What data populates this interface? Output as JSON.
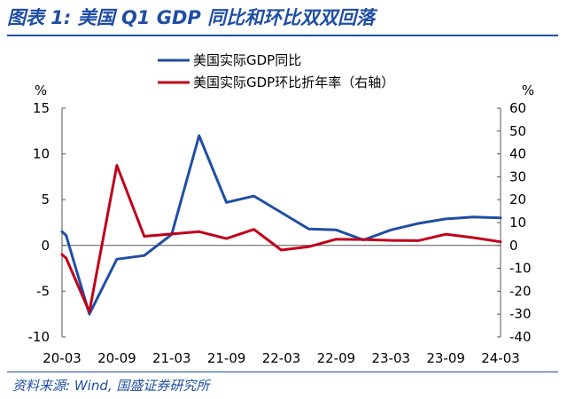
{
  "header": {
    "title": "图表 1:  美国 Q1 GDP 同比和环比双双回落"
  },
  "footer": {
    "source": "资料来源:  Wind,  国盛证券研究所"
  },
  "chart_data": {
    "type": "line",
    "title": "图表 1:  美国 Q1 GDP 同比和环比双双回落",
    "ylabel_left": "%",
    "ylabel_right": "%",
    "ylim_left": [
      -10,
      15
    ],
    "ylim_right": [
      -40,
      60
    ],
    "yticks_left": [
      "15",
      "10",
      "5",
      "0",
      "-5",
      "-10"
    ],
    "yticks_right": [
      "60",
      "50",
      "40",
      "30",
      "20",
      "10",
      "0",
      "-10",
      "-20",
      "-30",
      "-40"
    ],
    "x_tick_labels": [
      "20-03",
      "20-09",
      "21-03",
      "21-09",
      "22-03",
      "22-09",
      "23-03",
      "23-09",
      "24-03"
    ],
    "x_range": [
      0,
      16
    ],
    "series": [
      {
        "name": "美国实际GDP同比",
        "axis": "left",
        "color": "#1f4ea3",
        "x": [
          0,
          0.15,
          1,
          2,
          3,
          4,
          5,
          6,
          7,
          8,
          9,
          10,
          11,
          12,
          13,
          14,
          15,
          16
        ],
        "values": [
          1.5,
          1.1,
          -7.5,
          -1.5,
          -1.1,
          1.2,
          12.0,
          4.7,
          5.4,
          3.6,
          1.8,
          1.7,
          0.6,
          1.7,
          2.4,
          2.9,
          3.1,
          3.0
        ]
      },
      {
        "name": "美国实际GDP环比折年率（右轴）",
        "axis": "right",
        "color": "#c0001a",
        "x": [
          0,
          0.15,
          1,
          2,
          3,
          4,
          5,
          6,
          7,
          8,
          9,
          10,
          11,
          12,
          13,
          14,
          15,
          16
        ],
        "values": [
          -4.0,
          -5.5,
          -29.0,
          35.0,
          4.0,
          5.0,
          6.0,
          3.0,
          7.0,
          -2.0,
          -0.6,
          2.7,
          2.6,
          2.2,
          2.1,
          4.9,
          3.4,
          1.6
        ]
      }
    ]
  }
}
